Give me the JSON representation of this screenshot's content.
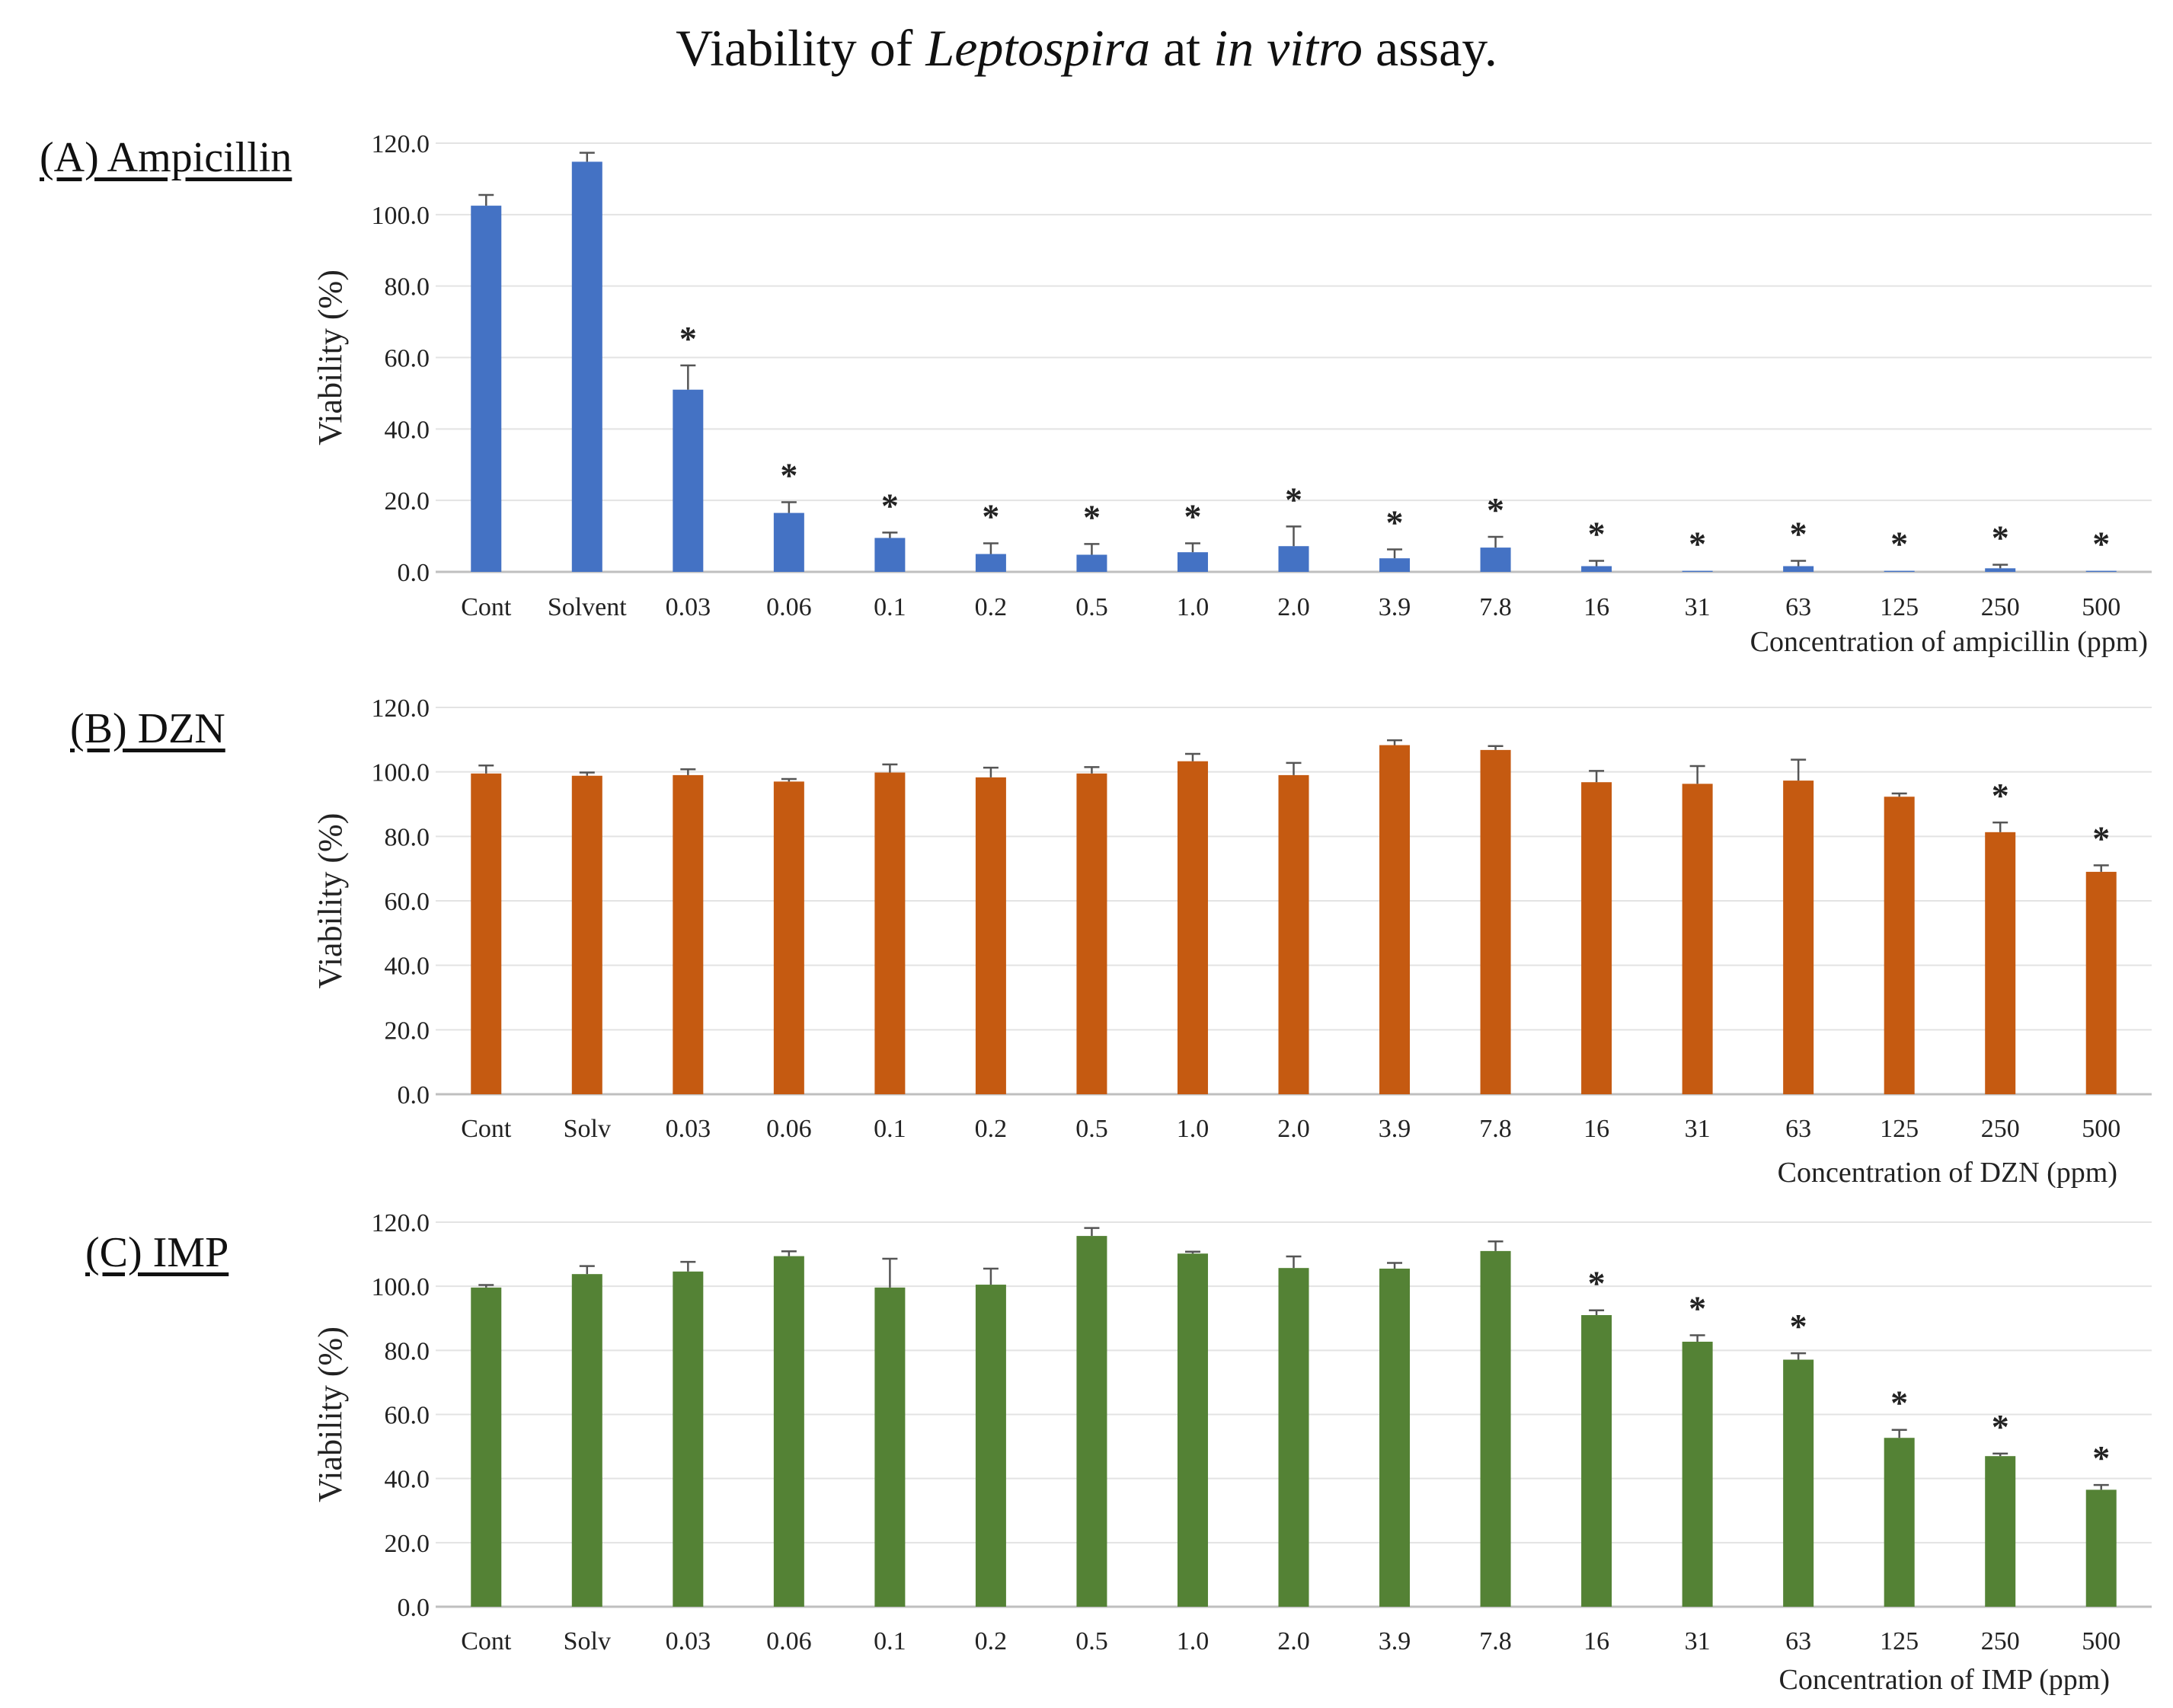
{
  "title": {
    "prefix": "Viability of ",
    "organism": "Leptospira",
    "middle": " at ",
    "assay_type": "in vitro",
    "suffix": " assay."
  },
  "chart_data": [
    {
      "type": "bar",
      "panel_label": "(A) Ampicillin",
      "title": "Viability of Leptospira at in vitro assay.",
      "ylabel": "Viability (%)",
      "xlabel": "Concentration of ampicillin (ppm)",
      "ylim": [
        0,
        120
      ],
      "yticks": [
        "0.0",
        "20.0",
        "40.0",
        "60.0",
        "80.0",
        "100.0",
        "120.0"
      ],
      "grid": true,
      "color": "#4472C4",
      "categories": [
        "Cont",
        "Solvent",
        "0.03",
        "0.06",
        "0.1",
        "0.2",
        "0.5",
        "1.0",
        "2.0",
        "3.9",
        "7.8",
        "16",
        "31",
        "63",
        "125",
        "250",
        "500"
      ],
      "values": [
        102.5,
        114.8,
        51.0,
        16.5,
        9.5,
        5.0,
        4.8,
        5.5,
        7.2,
        3.8,
        6.8,
        1.6,
        0.3,
        1.6,
        0.3,
        1.0,
        0.3
      ],
      "errors": [
        3.0,
        2.5,
        6.8,
        3.0,
        1.5,
        3.0,
        3.0,
        2.5,
        5.5,
        2.5,
        3.0,
        1.5,
        0.0,
        1.5,
        0.0,
        1.0,
        0.0
      ],
      "significance": [
        "",
        "",
        "*",
        "*",
        "*",
        "*",
        "*",
        "*",
        "*",
        "*",
        "*",
        "*",
        "*",
        "*",
        "*",
        "*",
        "*"
      ]
    },
    {
      "type": "bar",
      "panel_label": "(B) DZN",
      "ylabel": "Viability (%)",
      "xlabel": "Concentration of DZN (ppm)",
      "ylim": [
        0,
        120
      ],
      "yticks": [
        "0.0",
        "20.0",
        "40.0",
        "60.0",
        "80.0",
        "100.0",
        "120.0"
      ],
      "grid": true,
      "color": "#C55A11",
      "categories": [
        "Cont",
        "Solv",
        "0.03",
        "0.06",
        "0.1",
        "0.2",
        "0.5",
        "1.0",
        "2.0",
        "3.9",
        "7.8",
        "16",
        "31",
        "63",
        "125",
        "250",
        "500"
      ],
      "values": [
        99.5,
        98.8,
        99.0,
        97.0,
        99.8,
        98.3,
        99.5,
        103.3,
        99.0,
        108.3,
        106.8,
        96.8,
        96.3,
        97.3,
        92.3,
        81.3,
        69.0
      ],
      "errors": [
        2.5,
        1.0,
        1.8,
        0.8,
        2.5,
        3.0,
        2.0,
        2.3,
        3.8,
        1.5,
        1.2,
        3.5,
        5.5,
        6.5,
        1.0,
        3.0,
        2.0
      ],
      "significance": [
        "",
        "",
        "",
        "",
        "",
        "",
        "",
        "",
        "",
        "",
        "",
        "",
        "",
        "",
        "",
        "*",
        "*"
      ]
    },
    {
      "type": "bar",
      "panel_label": "(C) IMP",
      "ylabel": "Viability (%)",
      "xlabel": "Concentration of IMP (ppm)",
      "ylim": [
        0,
        120
      ],
      "yticks": [
        "0.0",
        "20.0",
        "40.0",
        "60.0",
        "80.0",
        "100.0",
        "120.0"
      ],
      "grid": true,
      "color": "#548235",
      "categories": [
        "Cont",
        "Solv",
        "0.03",
        "0.06",
        "0.1",
        "0.2",
        "0.5",
        "1.0",
        "2.0",
        "3.9",
        "7.8",
        "16",
        "31",
        "63",
        "125",
        "250",
        "500"
      ],
      "values": [
        99.6,
        103.8,
        104.6,
        109.4,
        99.6,
        100.5,
        115.7,
        110.2,
        105.7,
        105.5,
        111.0,
        91.0,
        82.7,
        77.1,
        52.7,
        47.0,
        36.5
      ],
      "errors": [
        0.8,
        2.5,
        3.0,
        1.5,
        9.0,
        5.0,
        2.5,
        0.6,
        3.6,
        1.8,
        3.0,
        1.5,
        2.0,
        2.0,
        2.5,
        0.8,
        1.5
      ],
      "significance": [
        "",
        "",
        "",
        "",
        "",
        "",
        "",
        "",
        "",
        "",
        "",
        "*",
        "*",
        "*",
        "*",
        "*",
        "*"
      ]
    }
  ]
}
